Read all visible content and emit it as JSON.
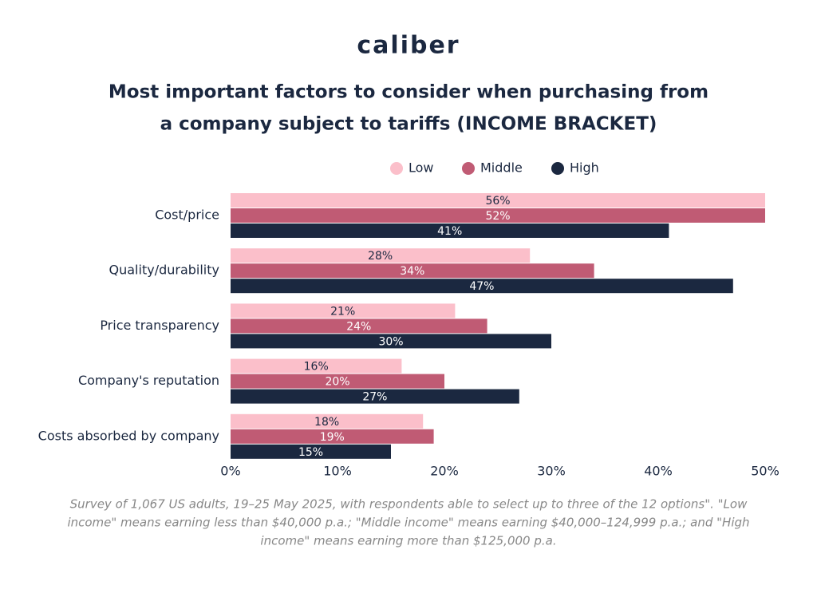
{
  "brand": "caliber",
  "chart_data": {
    "type": "hbar",
    "title": [
      "Most important factors to consider when purchasing from",
      "a company subject to tariffs (INCOME BRACKET)"
    ],
    "categories": [
      "Cost/price",
      "Quality/durability",
      "Price transparency",
      "Company's reputation",
      "Costs absorbed by company"
    ],
    "series": [
      {
        "name": "Low",
        "color": "#fbbfca",
        "values": [
          56,
          28,
          21,
          16,
          18
        ],
        "value_labels": [
          "56%",
          "28%",
          "21%",
          "16%",
          "18%"
        ]
      },
      {
        "name": "Middle",
        "color": "#c05b74",
        "values": [
          52,
          34,
          24,
          20,
          19
        ],
        "value_labels": [
          "52%",
          "34%",
          "24%",
          "20%",
          "19%"
        ]
      },
      {
        "name": "High",
        "color": "#1b2840",
        "values": [
          41,
          47,
          30,
          27,
          15
        ],
        "value_labels": [
          "41%",
          "47%",
          "30%",
          "27%",
          "15%"
        ]
      }
    ],
    "xlim": [
      0,
      50
    ],
    "xticks": [
      {
        "value": 0,
        "label": "0%"
      },
      {
        "value": 10,
        "label": "10%"
      },
      {
        "value": 20,
        "label": "20%"
      },
      {
        "value": 30,
        "label": "30%"
      },
      {
        "value": 40,
        "label": "40%"
      },
      {
        "value": 50,
        "label": "50%"
      }
    ],
    "legend": "top",
    "footnote": [
      "Survey of 1,067 US adults, 19–25 May 2025, with respondents able to select up to three of the 12 options\". \"Low",
      "income\" means earning less than $40,000 p.a.; \"Middle income\" means earning $40,000–124,999 p.a.; and \"High",
      "income\" means earning more than $125,000 p.a."
    ]
  }
}
